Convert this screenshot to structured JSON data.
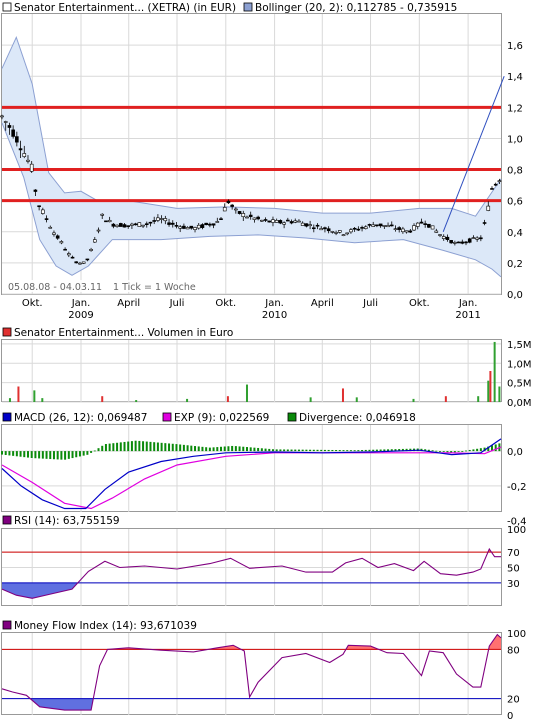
{
  "x_labels": [
    "Okt.",
    "Jan.",
    "April",
    "Juli",
    "Okt.",
    "Jan.",
    "April",
    "Juli",
    "Okt.",
    "Jan."
  ],
  "x_years": [
    "2009",
    "2010",
    "2011"
  ],
  "colors": {
    "candle": "#000000",
    "bollinger_band": "#dce8f8",
    "bollinger_line": "#8ca0d2",
    "resistance": "#e02020",
    "volume": "#30a030",
    "volume_alt": "#e03030",
    "macd": "#0000c8",
    "exp": "#e000e0",
    "divergence": "#0a8a0a",
    "rsi": "#800080",
    "reference": "#d00000",
    "reference_low": "#0000c0",
    "overbought": "#ff7070",
    "oversold": "#6070e0"
  },
  "chart_data": [
    {
      "type": "candlestick",
      "legend": [
        {
          "label": "Senator Entertainment... (XETRA) (in EUR)",
          "color": "#ffffff"
        },
        {
          "label": "Bollinger (20, 2): 0,112785 - 0,735915",
          "color": "#8ca0d2"
        }
      ],
      "ylim": [
        0,
        1.8
      ],
      "y_ticks": [
        "0,0",
        "0,2",
        "0,4",
        "0,6",
        "0,8",
        "1,0",
        "1,2",
        "1,4",
        "1,6"
      ],
      "date_range_label": "05.08.08 - 04.03.11",
      "tick_note": "1 Tick = 1 Woche",
      "horizontal_lines": [
        1.2,
        0.8,
        0.6
      ],
      "trend_line": {
        "from": [
          "2010-11-15",
          0.4
        ],
        "to": [
          "2011-03-10",
          1.4
        ]
      },
      "price_points": [
        [
          "2008-08-05",
          1.14
        ],
        [
          "2008-08-25",
          1.05
        ],
        [
          "2008-09-10",
          0.95
        ],
        [
          "2008-10-01",
          0.8
        ],
        [
          "2008-10-10",
          0.6
        ],
        [
          "2008-10-25",
          0.5
        ],
        [
          "2008-11-10",
          0.4
        ],
        [
          "2008-11-25",
          0.33
        ],
        [
          "2008-12-10",
          0.25
        ],
        [
          "2008-12-25",
          0.2
        ],
        [
          "2009-01-10",
          0.2
        ],
        [
          "2009-01-25",
          0.32
        ],
        [
          "2009-02-10",
          0.5
        ],
        [
          "2009-03-01",
          0.45
        ],
        [
          "2009-04-01",
          0.44
        ],
        [
          "2009-05-01",
          0.45
        ],
        [
          "2009-06-01",
          0.48
        ],
        [
          "2009-07-01",
          0.44
        ],
        [
          "2009-08-01",
          0.42
        ],
        [
          "2009-09-01",
          0.45
        ],
        [
          "2009-09-20",
          0.47
        ],
        [
          "2009-10-05",
          0.6
        ],
        [
          "2009-10-20",
          0.53
        ],
        [
          "2009-11-10",
          0.5
        ],
        [
          "2009-12-10",
          0.47
        ],
        [
          "2010-01-10",
          0.46
        ],
        [
          "2010-02-10",
          0.47
        ],
        [
          "2010-03-10",
          0.44
        ],
        [
          "2010-04-10",
          0.42
        ],
        [
          "2010-05-10",
          0.39
        ],
        [
          "2010-06-10",
          0.42
        ],
        [
          "2010-07-10",
          0.45
        ],
        [
          "2010-08-10",
          0.43
        ],
        [
          "2010-09-10",
          0.4
        ],
        [
          "2010-10-10",
          0.47
        ],
        [
          "2010-11-10",
          0.38
        ],
        [
          "2010-12-10",
          0.32
        ],
        [
          "2011-01-10",
          0.35
        ],
        [
          "2011-01-25",
          0.36
        ],
        [
          "2011-02-05",
          0.5
        ],
        [
          "2011-02-15",
          0.68
        ],
        [
          "2011-03-04",
          0.76
        ]
      ],
      "bollinger_upper": [
        [
          "2008-08-05",
          1.45
        ],
        [
          "2008-09-01",
          1.65
        ],
        [
          "2008-10-01",
          1.35
        ],
        [
          "2008-11-01",
          0.78
        ],
        [
          "2008-12-01",
          0.65
        ],
        [
          "2009-01-01",
          0.66
        ],
        [
          "2009-02-01",
          0.6
        ],
        [
          "2009-04-01",
          0.6
        ],
        [
          "2009-07-01",
          0.55
        ],
        [
          "2009-10-01",
          0.56
        ],
        [
          "2010-01-01",
          0.55
        ],
        [
          "2010-04-01",
          0.52
        ],
        [
          "2010-07-01",
          0.52
        ],
        [
          "2010-10-01",
          0.55
        ],
        [
          "2010-12-01",
          0.55
        ],
        [
          "2011-01-15",
          0.5
        ],
        [
          "2011-03-04",
          0.74
        ]
      ],
      "bollinger_lower": [
        [
          "2008-08-05",
          1.1
        ],
        [
          "2008-09-15",
          0.75
        ],
        [
          "2008-10-15",
          0.35
        ],
        [
          "2008-11-15",
          0.18
        ],
        [
          "2008-12-15",
          0.12
        ],
        [
          "2009-01-15",
          0.18
        ],
        [
          "2009-03-01",
          0.35
        ],
        [
          "2009-06-01",
          0.35
        ],
        [
          "2009-09-01",
          0.37
        ],
        [
          "2009-12-01",
          0.38
        ],
        [
          "2010-03-01",
          0.36
        ],
        [
          "2010-06-01",
          0.33
        ],
        [
          "2010-09-01",
          0.35
        ],
        [
          "2010-11-15",
          0.28
        ],
        [
          "2011-01-15",
          0.22
        ],
        [
          "2011-02-15",
          0.16
        ],
        [
          "2011-03-04",
          0.11
        ]
      ]
    },
    {
      "type": "bar",
      "legend": [
        {
          "label": "Senator Entertainment... Volumen in Euro",
          "color": "#e03030"
        }
      ],
      "ylim": [
        0,
        1.6
      ],
      "y_ticks": [
        "0,0M",
        "0,5M",
        "1,0M",
        "1,5M"
      ],
      "tick_values": [
        0,
        0.5,
        1.0,
        1.5
      ],
      "peaks_million": [
        [
          "2008-08-20",
          0.1
        ],
        [
          "2008-09-05",
          0.4
        ],
        [
          "2008-10-05",
          0.3
        ],
        [
          "2008-10-20",
          0.1
        ],
        [
          "2009-02-10",
          0.15
        ],
        [
          "2009-04-15",
          0.05
        ],
        [
          "2009-07-20",
          0.08
        ],
        [
          "2009-10-05",
          0.15
        ],
        [
          "2009-11-10",
          0.45
        ],
        [
          "2010-03-10",
          0.12
        ],
        [
          "2010-05-10",
          0.35
        ],
        [
          "2010-06-05",
          0.12
        ],
        [
          "2010-09-20",
          0.08
        ],
        [
          "2010-11-20",
          0.15
        ],
        [
          "2011-01-20",
          0.15
        ],
        [
          "2011-02-08",
          0.55
        ],
        [
          "2011-02-12",
          0.8
        ],
        [
          "2011-02-20",
          1.55
        ],
        [
          "2011-03-01",
          0.4
        ]
      ]
    },
    {
      "type": "line",
      "legend": [
        {
          "label": "MACD (26, 12): 0,069487",
          "color": "#0000c8"
        },
        {
          "label": "EXP (9): 0,022569",
          "color": "#e000e0"
        },
        {
          "label": "Divergence: 0,046918",
          "color": "#0a8a0a"
        }
      ],
      "ylim": [
        -0.35,
        0.15
      ],
      "y_ticks": [
        "-0,4",
        "-0,2",
        "0,0"
      ],
      "tick_values": [
        -0.4,
        -0.2,
        0.0
      ],
      "macd": [
        [
          "2008-08-05",
          -0.1
        ],
        [
          "2008-09-10",
          -0.2
        ],
        [
          "2008-10-20",
          -0.28
        ],
        [
          "2008-12-01",
          -0.33
        ],
        [
          "2009-01-10",
          -0.33
        ],
        [
          "2009-02-15",
          -0.22
        ],
        [
          "2009-04-01",
          -0.12
        ],
        [
          "2009-06-01",
          -0.06
        ],
        [
          "2009-08-01",
          -0.03
        ],
        [
          "2009-10-01",
          -0.01
        ],
        [
          "2010-01-01",
          -0.005
        ],
        [
          "2010-04-01",
          -0.01
        ],
        [
          "2010-07-01",
          -0.005
        ],
        [
          "2010-10-01",
          0.005
        ],
        [
          "2010-12-01",
          -0.02
        ],
        [
          "2011-01-25",
          -0.01
        ],
        [
          "2011-03-04",
          0.07
        ]
      ],
      "exp": [
        [
          "2008-08-05",
          -0.08
        ],
        [
          "2008-10-01",
          -0.18
        ],
        [
          "2008-12-01",
          -0.3
        ],
        [
          "2009-01-20",
          -0.33
        ],
        [
          "2009-03-01",
          -0.27
        ],
        [
          "2009-05-01",
          -0.16
        ],
        [
          "2009-07-01",
          -0.08
        ],
        [
          "2009-10-01",
          -0.03
        ],
        [
          "2010-01-01",
          -0.01
        ],
        [
          "2010-06-01",
          -0.01
        ],
        [
          "2010-12-01",
          -0.01
        ],
        [
          "2011-02-01",
          -0.015
        ],
        [
          "2011-03-04",
          0.023
        ]
      ],
      "divergence": [
        [
          "2008-08-05",
          -0.02
        ],
        [
          "2008-10-01",
          -0.04
        ],
        [
          "2008-12-01",
          -0.05
        ],
        [
          "2009-01-15",
          -0.02
        ],
        [
          "2009-02-15",
          0.04
        ],
        [
          "2009-04-15",
          0.06
        ],
        [
          "2009-07-01",
          0.04
        ],
        [
          "2009-09-01",
          0.02
        ],
        [
          "2009-10-15",
          0.03
        ],
        [
          "2010-01-01",
          0.01
        ],
        [
          "2010-06-01",
          0.005
        ],
        [
          "2010-10-01",
          0.015
        ],
        [
          "2010-12-01",
          -0.01
        ],
        [
          "2011-02-01",
          0.02
        ],
        [
          "2011-03-04",
          0.047
        ]
      ]
    },
    {
      "type": "line",
      "legend": [
        {
          "label": "RSI (14): 63,755159",
          "color": "#800080"
        }
      ],
      "ylim": [
        0,
        100
      ],
      "y_ticks": [
        "30",
        "50",
        "70",
        "100"
      ],
      "tick_values": [
        30,
        50,
        70,
        100
      ],
      "reference_lines": [
        70,
        30
      ],
      "values": [
        [
          "2008-08-05",
          22
        ],
        [
          "2008-09-01",
          14
        ],
        [
          "2008-10-01",
          10
        ],
        [
          "2008-11-01",
          15
        ],
        [
          "2008-12-15",
          22
        ],
        [
          "2009-01-15",
          45
        ],
        [
          "2009-02-15",
          58
        ],
        [
          "2009-03-15",
          50
        ],
        [
          "2009-05-01",
          52
        ],
        [
          "2009-07-01",
          48
        ],
        [
          "2009-09-01",
          55
        ],
        [
          "2009-10-10",
          62
        ],
        [
          "2009-11-15",
          49
        ],
        [
          "2010-01-15",
          52
        ],
        [
          "2010-03-01",
          44
        ],
        [
          "2010-04-20",
          44
        ],
        [
          "2010-05-15",
          56
        ],
        [
          "2010-06-15",
          62
        ],
        [
          "2010-07-15",
          50
        ],
        [
          "2010-08-15",
          55
        ],
        [
          "2010-09-20",
          46
        ],
        [
          "2010-10-10",
          58
        ],
        [
          "2010-11-10",
          42
        ],
        [
          "2010-12-10",
          40
        ],
        [
          "2011-01-10",
          44
        ],
        [
          "2011-01-25",
          48
        ],
        [
          "2011-02-10",
          74
        ],
        [
          "2011-02-20",
          64
        ],
        [
          "2011-03-04",
          64
        ]
      ]
    },
    {
      "type": "line",
      "legend": [
        {
          "label": "Money Flow Index (14): 93,671039",
          "color": "#800080"
        }
      ],
      "ylim": [
        0,
        100
      ],
      "y_ticks": [
        "0",
        "20",
        "80",
        "100"
      ],
      "tick_values": [
        0,
        20,
        80,
        100
      ],
      "reference_lines": [
        80,
        20
      ],
      "values": [
        [
          "2008-08-05",
          32
        ],
        [
          "2008-08-25",
          28
        ],
        [
          "2008-09-20",
          24
        ],
        [
          "2008-10-15",
          10
        ],
        [
          "2008-12-01",
          6
        ],
        [
          "2009-01-20",
          6
        ],
        [
          "2009-02-05",
          60
        ],
        [
          "2009-02-20",
          80
        ],
        [
          "2009-04-01",
          82
        ],
        [
          "2009-06-01",
          79
        ],
        [
          "2009-08-01",
          77
        ],
        [
          "2009-09-15",
          82
        ],
        [
          "2009-10-15",
          85
        ],
        [
          "2009-11-05",
          78
        ],
        [
          "2009-11-15",
          22
        ],
        [
          "2009-12-01",
          40
        ],
        [
          "2010-01-15",
          70
        ],
        [
          "2010-03-01",
          75
        ],
        [
          "2010-04-15",
          64
        ],
        [
          "2010-05-10",
          74
        ],
        [
          "2010-05-20",
          85
        ],
        [
          "2010-07-01",
          84
        ],
        [
          "2010-08-01",
          76
        ],
        [
          "2010-09-01",
          75
        ],
        [
          "2010-09-20",
          60
        ],
        [
          "2010-10-05",
          48
        ],
        [
          "2010-10-20",
          78
        ],
        [
          "2010-11-15",
          76
        ],
        [
          "2010-12-10",
          50
        ],
        [
          "2011-01-10",
          34
        ],
        [
          "2011-01-25",
          34
        ],
        [
          "2011-02-10",
          84
        ],
        [
          "2011-02-25",
          98
        ],
        [
          "2011-03-04",
          94
        ]
      ]
    }
  ]
}
